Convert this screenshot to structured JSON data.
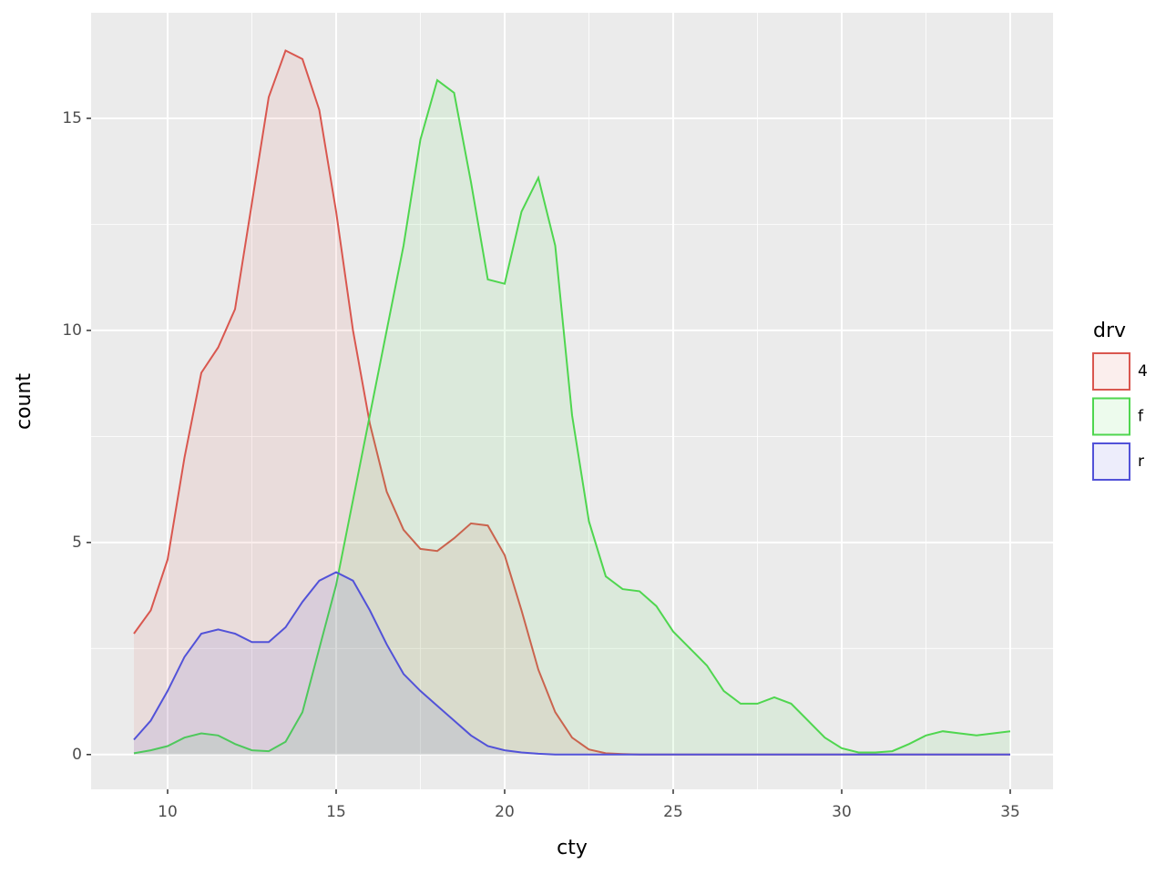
{
  "chart_data": {
    "type": "area",
    "x_label": "cty",
    "y_label": "count",
    "legend_title": "drv",
    "x": [
      9,
      9.5,
      10,
      10.5,
      11,
      11.5,
      12,
      12.5,
      13,
      13.5,
      14,
      14.5,
      15,
      15.5,
      16,
      16.5,
      17,
      17.5,
      18,
      18.5,
      19,
      19.5,
      20,
      20.5,
      21,
      21.5,
      22,
      22.5,
      23,
      23.5,
      24,
      24.5,
      25,
      25.5,
      26,
      26.5,
      27,
      27.5,
      28,
      28.5,
      29,
      29.5,
      30,
      30.5,
      31,
      31.5,
      32,
      32.5,
      33,
      33.5,
      34,
      34.5,
      35
    ],
    "series": [
      {
        "name": "4",
        "color": "#d9574f",
        "values": [
          2.85,
          3.4,
          4.6,
          7.0,
          9.0,
          9.6,
          10.5,
          13.0,
          15.5,
          16.6,
          16.4,
          15.2,
          12.8,
          10.0,
          7.8,
          6.2,
          5.3,
          4.85,
          4.8,
          5.1,
          5.45,
          5.4,
          4.7,
          3.4,
          2.0,
          1.0,
          0.4,
          0.12,
          0.03,
          0.01,
          0,
          0,
          0,
          0,
          0,
          0,
          0,
          0,
          0,
          0,
          0,
          0,
          0,
          0,
          0,
          0,
          0,
          0,
          0,
          0,
          0,
          0,
          0
        ]
      },
      {
        "name": "f",
        "color": "#4fd64f",
        "values": [
          0.03,
          0.1,
          0.2,
          0.4,
          0.5,
          0.45,
          0.25,
          0.1,
          0.08,
          0.3,
          1.0,
          2.5,
          4.0,
          6.0,
          8.0,
          10.0,
          12.0,
          14.5,
          15.9,
          15.6,
          13.5,
          11.2,
          11.1,
          12.8,
          13.6,
          12.0,
          8.0,
          5.5,
          4.2,
          3.9,
          3.85,
          3.5,
          2.9,
          2.5,
          2.1,
          1.5,
          1.2,
          1.2,
          1.35,
          1.2,
          0.8,
          0.4,
          0.15,
          0.05,
          0.05,
          0.08,
          0.25,
          0.45,
          0.55,
          0.5,
          0.45,
          0.5,
          0.55
        ]
      },
      {
        "name": "r",
        "color": "#5252d8",
        "values": [
          0.35,
          0.8,
          1.5,
          2.3,
          2.85,
          2.95,
          2.85,
          2.65,
          2.65,
          3.0,
          3.6,
          4.1,
          4.3,
          4.1,
          3.4,
          2.6,
          1.9,
          1.5,
          1.15,
          0.8,
          0.45,
          0.2,
          0.1,
          0.05,
          0.02,
          0,
          0,
          0,
          0,
          0,
          0,
          0,
          0,
          0,
          0,
          0,
          0,
          0,
          0,
          0,
          0,
          0,
          0,
          0,
          0,
          0,
          0,
          0,
          0,
          0,
          0,
          0,
          0
        ]
      }
    ],
    "xlim": [
      7.73,
      36.27
    ],
    "ylim": [
      -0.82,
      17.49
    ],
    "xticks": [
      10,
      15,
      20,
      25,
      30,
      35
    ],
    "yticks": [
      0,
      5,
      10,
      15
    ],
    "grid": true
  }
}
